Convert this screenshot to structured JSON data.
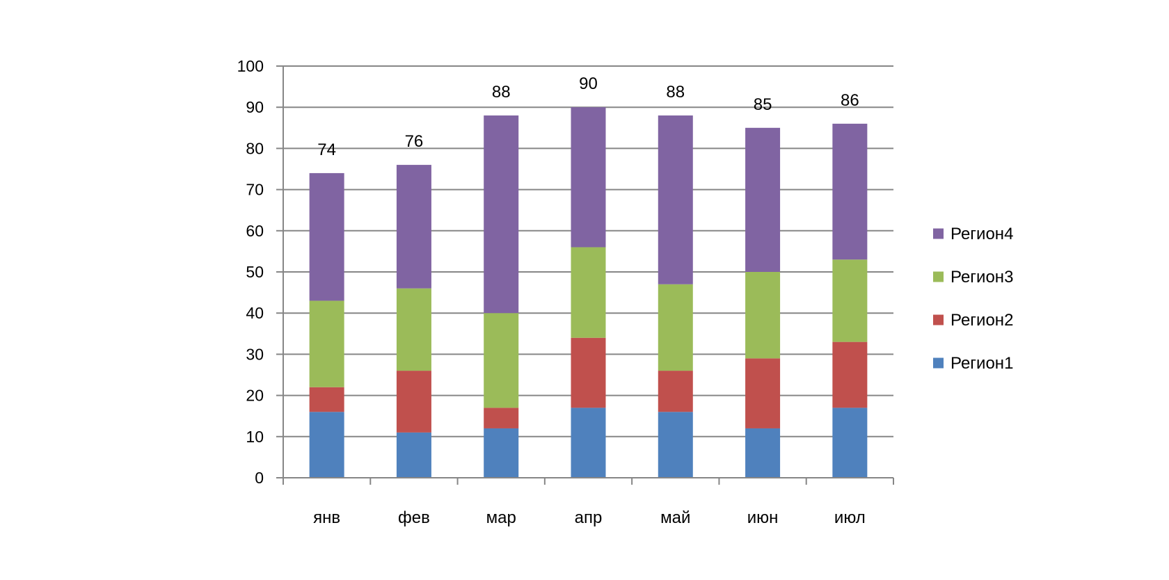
{
  "chart_data": {
    "type": "bar",
    "stacked": true,
    "title": "",
    "xlabel": "",
    "ylabel": "",
    "categories": [
      "янв",
      "фев",
      "мар",
      "апр",
      "май",
      "июн",
      "июл"
    ],
    "series": [
      {
        "name": "Регион1",
        "color": "#4f81bd",
        "values": [
          16,
          11,
          12,
          17,
          16,
          12,
          17
        ]
      },
      {
        "name": "Регион2",
        "color": "#c0504d",
        "values": [
          6,
          15,
          5,
          17,
          10,
          17,
          16
        ]
      },
      {
        "name": "Регион3",
        "color": "#9bbb59",
        "values": [
          21,
          20,
          23,
          22,
          21,
          21,
          20
        ]
      },
      {
        "name": "Регион4",
        "color": "#8064a2",
        "values": [
          31,
          30,
          48,
          34,
          41,
          35,
          33
        ]
      }
    ],
    "totals": [
      "74",
      "76",
      "88",
      "90",
      "88",
      "85",
      "86"
    ],
    "ylim": [
      0,
      100
    ],
    "yticks": [
      "0",
      "10",
      "20",
      "30",
      "40",
      "50",
      "60",
      "70",
      "80",
      "90",
      "100"
    ],
    "grid": true,
    "legend": {
      "placement": "right",
      "entries": [
        "Регион4",
        "Регион3",
        "Регион2",
        "Регион1"
      ]
    }
  }
}
